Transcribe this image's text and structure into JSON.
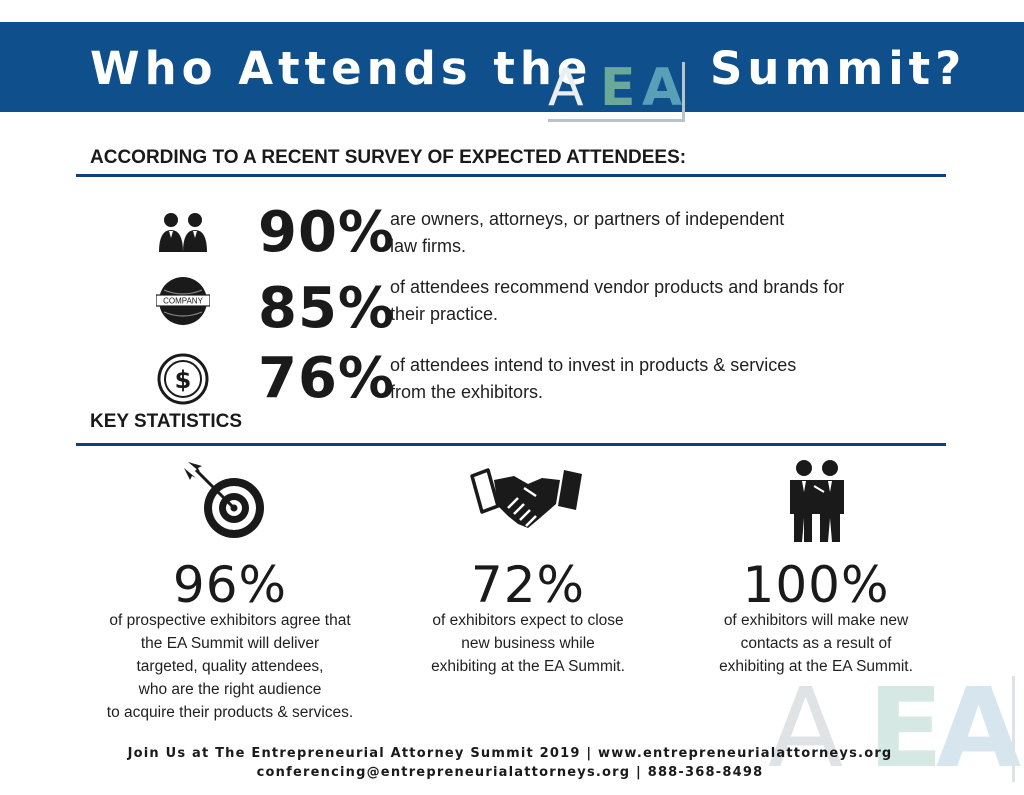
{
  "header": {
    "title_before": "Who Attends the",
    "title_after": "Summit?",
    "logo_letters": [
      "A",
      "E",
      "A"
    ],
    "background_color": "#0f4f8c"
  },
  "survey": {
    "heading": "ACCORDING TO A RECENT SURVEY OF EXPECTED ATTENDEES:",
    "stats": [
      {
        "icon": "people-icon",
        "percent": "90%",
        "line1": "are owners, attorneys, or partners of independent",
        "line2": "law firms."
      },
      {
        "icon": "company-globe-icon",
        "badge": "COMPANY",
        "percent": "85%",
        "line1": "of attendees recommend vendor products and brands for",
        "line2": "their practice."
      },
      {
        "icon": "dollar-coin-icon",
        "percent": "76%",
        "line1": "of attendees intend to invest in products & services",
        "line2": "from the exhibitors."
      }
    ]
  },
  "key_statistics": {
    "heading": "KEY STATISTICS",
    "items": [
      {
        "icon": "target-icon",
        "percent": "96%",
        "lines": [
          "of prospective exhibitors agree that",
          "the EA Summit will deliver",
          "targeted, quality attendees,",
          "who are the right audience",
          "to acquire their products & services."
        ]
      },
      {
        "icon": "handshake-icon",
        "percent": "72%",
        "lines": [
          "of exhibitors expect to close",
          "new business while",
          "exhibiting at the EA Summit."
        ]
      },
      {
        "icon": "business-partners-icon",
        "percent": "100%",
        "lines": [
          "of exhibitors will make new",
          "contacts as a result of",
          "exhibiting at the EA Summit."
        ]
      }
    ]
  },
  "footer": {
    "line1": "Join Us at The Entrepreneurial Attorney Summit 2019 | www.entrepreneurialattorneys.org",
    "line2": "conferencing@entrepreneurialattorneys.org | 888-368-8498"
  },
  "colors": {
    "accent_blue": "#123f78",
    "logo_green": "#6aa89a",
    "logo_teal": "#5a9fb8"
  }
}
